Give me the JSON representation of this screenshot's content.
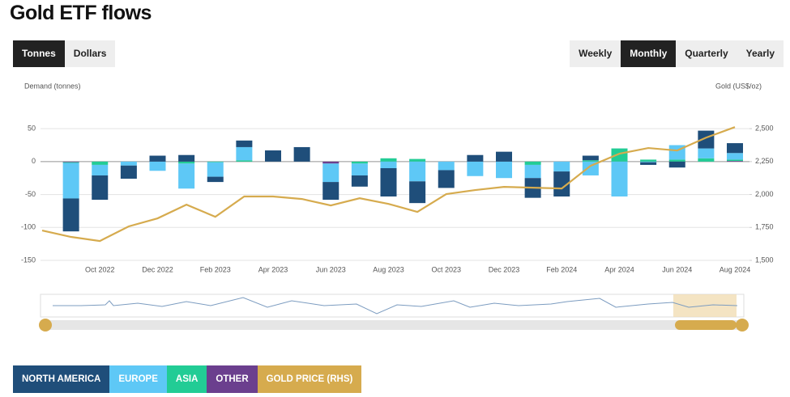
{
  "page": {
    "title": "Gold ETF flows",
    "unit_buttons": [
      "Tonnes",
      "Dollars"
    ],
    "period_buttons": [
      "Weekly",
      "Monthly",
      "Quarterly",
      "Yearly"
    ]
  },
  "chart_data": {
    "type": "bar",
    "stacked": true,
    "ylabel": "Demand (tonnes)",
    "y2label": "Gold (US$/oz)",
    "categories": [
      null,
      null,
      "Oct 2022",
      null,
      "Dec 2022",
      null,
      "Feb 2023",
      null,
      "Apr 2023",
      null,
      "Jun 2023",
      null,
      "Aug 2023",
      null,
      "Oct 2023",
      null,
      "Dec 2023",
      null,
      "Feb 2024",
      null,
      "Apr 2024",
      null,
      "Jun 2024",
      null,
      "Aug 2024"
    ],
    "ylim": [
      -150,
      60
    ],
    "yticks": [
      -150,
      -100,
      -50,
      0,
      50
    ],
    "y2lim": [
      1500,
      2550
    ],
    "y2ticks": [
      {
        "value": 1500,
        "label": "1,500"
      },
      {
        "value": 1750,
        "label": "1,750"
      },
      {
        "value": 2000,
        "label": "2,000"
      },
      {
        "value": 2250,
        "label": "2,250"
      },
      {
        "value": 2500,
        "label": "2,500"
      }
    ],
    "grid": true,
    "series": [
      {
        "name": "NORTH AMERICA",
        "color": "#1f4e7a",
        "values": [
          null,
          -50,
          -37,
          -20,
          9,
          10,
          -8,
          10,
          17,
          22,
          -27,
          -17,
          -43,
          -33,
          -27,
          10,
          15,
          -30,
          -38,
          7,
          0,
          -4,
          -9,
          27,
          15
        ]
      },
      {
        "name": "EUROPE",
        "color": "#5ec8f6",
        "values": [
          null,
          -54,
          -16,
          -6,
          -14,
          -38,
          -22,
          20,
          0,
          0,
          -28,
          -18,
          -10,
          -30,
          -13,
          -22,
          -25,
          -20,
          -15,
          -21,
          -53,
          -1,
          22,
          15,
          10
        ]
      },
      {
        "name": "ASIA",
        "color": "#22cc95",
        "values": [
          null,
          -1,
          -5,
          0,
          0,
          -3,
          -1,
          2,
          0,
          0,
          0,
          -3,
          5,
          4,
          0,
          0,
          0,
          -5,
          0,
          2,
          20,
          3,
          3,
          5,
          2
        ]
      },
      {
        "name": "OTHER",
        "color": "#6b3f8e",
        "values": [
          null,
          -1,
          0,
          0,
          0,
          0,
          0,
          0,
          0,
          0,
          -3,
          0,
          0,
          0,
          0,
          0,
          0,
          0,
          0,
          0,
          0,
          0,
          0,
          0,
          1
        ]
      },
      {
        "name": "GOLD PRICE (RHS)",
        "color": "#d6ab4e",
        "type": "line",
        "axis": "y2",
        "values": [
          1727,
          1678,
          1647,
          1758,
          1819,
          1923,
          1831,
          1985,
          1985,
          1966,
          1917,
          1972,
          1929,
          1868,
          2003,
          2034,
          2058,
          2052,
          2046,
          2218,
          2310,
          2353,
          2334,
          2432,
          2512
        ]
      }
    ]
  }
}
